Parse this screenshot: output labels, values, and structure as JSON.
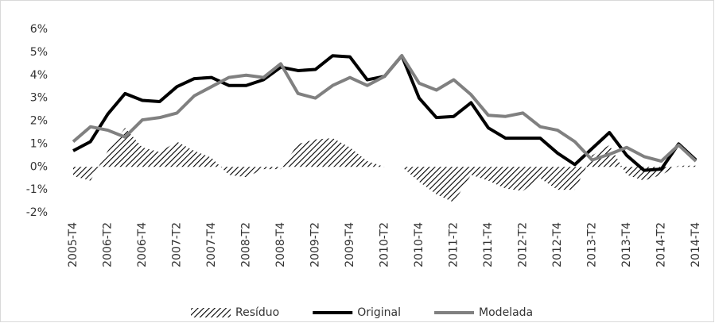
{
  "chart_data": {
    "type": "line",
    "categories": [
      "2005-T4",
      null,
      "2006-T2",
      null,
      "2006-T4",
      null,
      "2007-T2",
      null,
      "2007-T4",
      null,
      "2008-T2",
      null,
      "2008-T4",
      null,
      "2009-T2",
      null,
      "2009-T4",
      null,
      "2010-T2",
      null,
      "2010-T4",
      null,
      "2011-T2",
      null,
      "2011-T4",
      null,
      "2012-T2",
      null,
      "2012-T4",
      null,
      "2013-T2",
      null,
      "2013-T4",
      null,
      "2014-T2",
      null,
      "2014-T4"
    ],
    "series": [
      {
        "name": "Resíduo",
        "color": "#000000",
        "style": "hatched-area",
        "values": [
          -0.4,
          -0.6,
          0.7,
          1.7,
          0.85,
          0.65,
          1.1,
          0.7,
          0.4,
          -0.35,
          -0.45,
          -0.1,
          -0.1,
          1.0,
          1.2,
          1.25,
          0.85,
          0.25,
          0,
          0,
          -0.65,
          -1.2,
          -1.55,
          -0.35,
          -0.6,
          -0.95,
          -1.05,
          -0.5,
          -1.0,
          -1.0,
          0.5,
          0.95,
          -0.35,
          -0.6,
          -0.35,
          0.05,
          0.05
        ]
      },
      {
        "name": "Original",
        "color": "#000000",
        "values": [
          0.7,
          1.1,
          2.3,
          3.2,
          2.9,
          2.85,
          3.5,
          3.85,
          3.9,
          3.55,
          3.55,
          3.8,
          4.35,
          4.2,
          4.25,
          4.85,
          4.8,
          3.8,
          3.95,
          4.85,
          3.0,
          2.15,
          2.2,
          2.8,
          1.7,
          1.25,
          1.25,
          1.25,
          0.6,
          0.1,
          0.8,
          1.5,
          0.5,
          -0.15,
          -0.1,
          1.0,
          0.3
        ]
      },
      {
        "name": "Modelada",
        "color": "#808080",
        "values": [
          1.1,
          1.75,
          1.6,
          1.3,
          2.05,
          2.15,
          2.35,
          3.1,
          3.5,
          3.9,
          4.0,
          3.9,
          4.5,
          3.2,
          3.0,
          3.55,
          3.9,
          3.55,
          3.95,
          4.85,
          3.65,
          3.35,
          3.8,
          3.15,
          2.25,
          2.2,
          2.35,
          1.75,
          1.6,
          1.1,
          0.3,
          0.55,
          0.85,
          0.45,
          0.25,
          0.95,
          0.25
        ]
      }
    ],
    "ylim": [
      -2,
      6
    ],
    "yticks": [
      {
        "value": -2,
        "label": "-2%"
      },
      {
        "value": -1,
        "label": "-1%"
      },
      {
        "value": 0,
        "label": "0%"
      },
      {
        "value": 1,
        "label": "1%"
      },
      {
        "value": 2,
        "label": "2%"
      },
      {
        "value": 3,
        "label": "3%"
      },
      {
        "value": 4,
        "label": "4%"
      },
      {
        "value": 5,
        "label": "5%"
      },
      {
        "value": 6,
        "label": "6%"
      }
    ],
    "grid": false,
    "legend": "bottom"
  }
}
